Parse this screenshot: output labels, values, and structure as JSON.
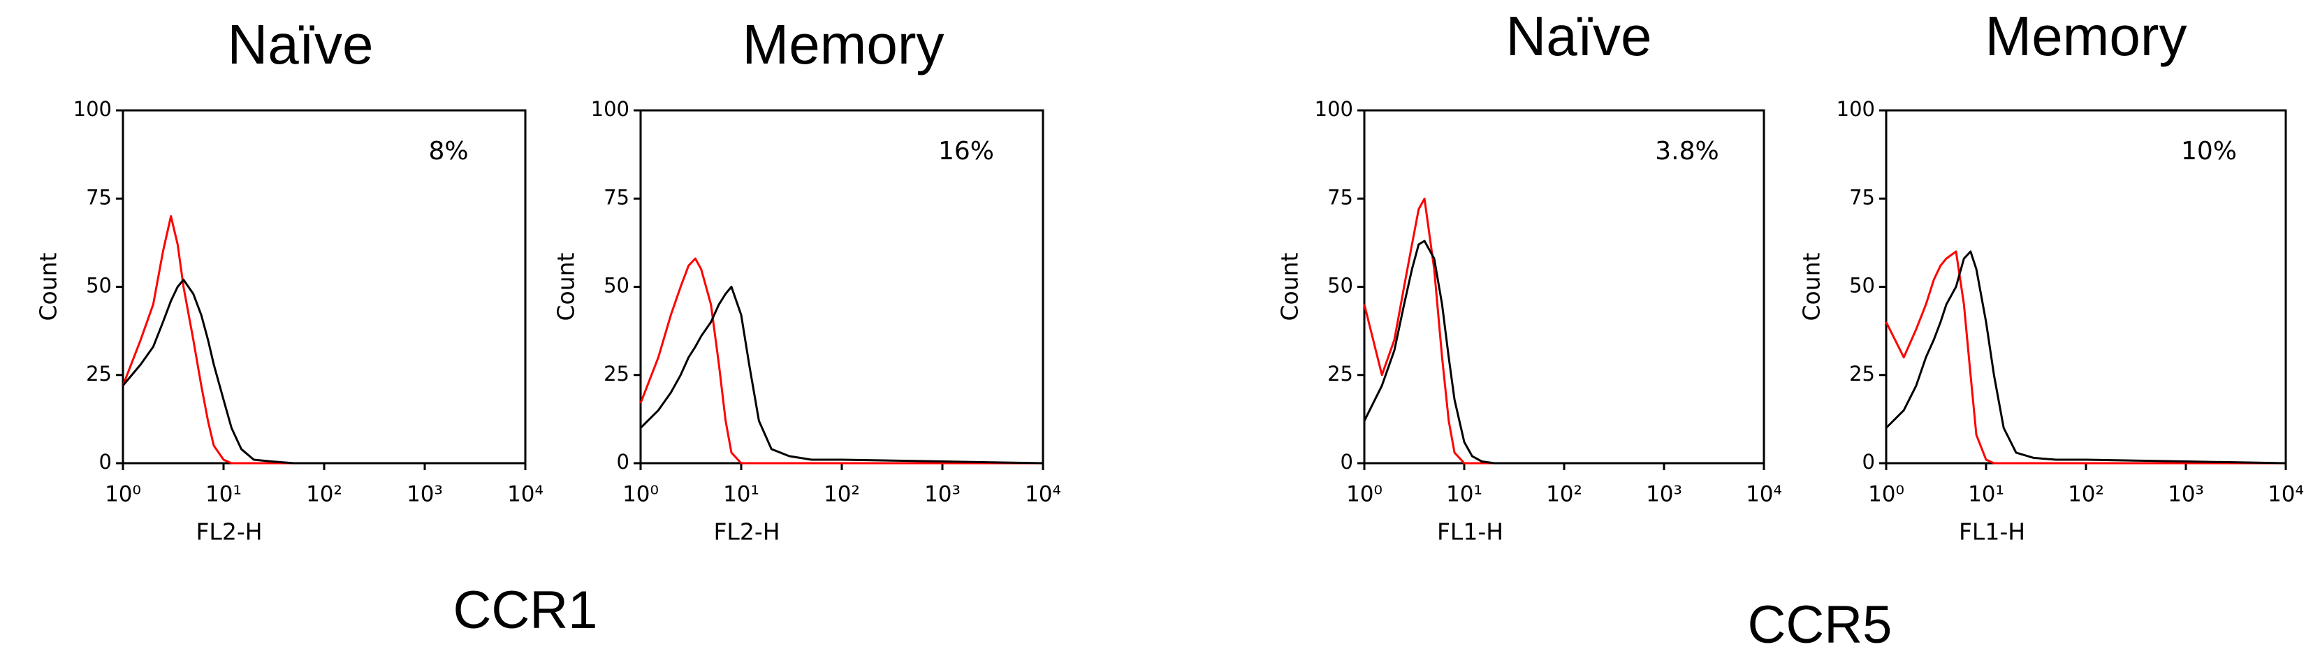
{
  "group_labels": [
    "CCR1",
    "CCR5"
  ],
  "chart_data": [
    {
      "type": "line",
      "title": "Naïve",
      "annotation": "8%",
      "xlabel": "FL2-H",
      "ylabel": "Count",
      "xscale": "log",
      "xlim": [
        1,
        10000
      ],
      "xticks": [
        {
          "value": 1,
          "label": "10⁰"
        },
        {
          "value": 10,
          "label": "10¹"
        },
        {
          "value": 100,
          "label": "10²"
        },
        {
          "value": 1000,
          "label": "10³"
        },
        {
          "value": 10000,
          "label": "10⁴"
        }
      ],
      "ylim": [
        0,
        100
      ],
      "yticks": [
        0,
        25,
        50,
        75,
        100
      ],
      "x": [
        1,
        1.5,
        2,
        2.5,
        3,
        3.5,
        4,
        5,
        6,
        7,
        8,
        10,
        12,
        15,
        20,
        30,
        50,
        100,
        1000,
        10000
      ],
      "series": [
        {
          "color": "#ff0000",
          "values": [
            22,
            35,
            45,
            60,
            70,
            62,
            50,
            35,
            22,
            12,
            5,
            1,
            0,
            0,
            0,
            0,
            0,
            0,
            0,
            0
          ]
        },
        {
          "color": "#000000",
          "values": [
            22,
            28,
            33,
            40,
            46,
            50,
            52,
            48,
            42,
            35,
            28,
            18,
            10,
            4,
            1,
            0.5,
            0,
            0,
            0,
            0
          ]
        }
      ]
    },
    {
      "type": "line",
      "title": "Memory",
      "annotation": "16%",
      "xlabel": "FL2-H",
      "ylabel": "Count",
      "xscale": "log",
      "xlim": [
        1,
        10000
      ],
      "xticks": [
        {
          "value": 1,
          "label": "10⁰"
        },
        {
          "value": 10,
          "label": "10¹"
        },
        {
          "value": 100,
          "label": "10²"
        },
        {
          "value": 1000,
          "label": "10³"
        },
        {
          "value": 10000,
          "label": "10⁴"
        }
      ],
      "ylim": [
        0,
        100
      ],
      "yticks": [
        0,
        25,
        50,
        75,
        100
      ],
      "x": [
        1,
        1.5,
        2,
        2.5,
        3,
        3.5,
        4,
        5,
        6,
        7,
        8,
        10,
        12,
        15,
        20,
        30,
        50,
        100,
        1000,
        10000
      ],
      "series": [
        {
          "color": "#ff0000",
          "values": [
            17,
            30,
            42,
            50,
            56,
            58,
            55,
            45,
            28,
            12,
            3,
            0,
            0,
            0,
            0,
            0,
            0,
            0,
            0,
            0
          ]
        },
        {
          "color": "#000000",
          "values": [
            10,
            15,
            20,
            25,
            30,
            33,
            36,
            40,
            45,
            48,
            50,
            42,
            28,
            12,
            4,
            2,
            1,
            1,
            0.5,
            0
          ]
        }
      ]
    },
    {
      "type": "line",
      "title": "Naïve",
      "annotation": "3.8%",
      "xlabel": "FL1-H",
      "ylabel": "Count",
      "xscale": "log",
      "xlim": [
        1,
        10000
      ],
      "xticks": [
        {
          "value": 1,
          "label": "10⁰"
        },
        {
          "value": 10,
          "label": "10¹"
        },
        {
          "value": 100,
          "label": "10²"
        },
        {
          "value": 1000,
          "label": "10³"
        },
        {
          "value": 10000,
          "label": "10⁴"
        }
      ],
      "ylim": [
        0,
        100
      ],
      "yticks": [
        0,
        25,
        50,
        75,
        100
      ],
      "x": [
        1,
        1.5,
        2,
        2.5,
        3,
        3.5,
        4,
        5,
        6,
        7,
        8,
        10,
        12,
        15,
        20,
        30,
        50,
        100,
        1000,
        10000
      ],
      "series": [
        {
          "color": "#ff0000",
          "values": [
            45,
            25,
            35,
            50,
            62,
            72,
            75,
            55,
            30,
            12,
            3,
            0,
            0,
            0,
            0,
            0,
            0,
            0,
            0,
            0
          ]
        },
        {
          "color": "#000000",
          "values": [
            12,
            22,
            32,
            45,
            55,
            62,
            63,
            58,
            45,
            30,
            18,
            6,
            2,
            0.5,
            0,
            0,
            0,
            0,
            0,
            0
          ]
        }
      ]
    },
    {
      "type": "line",
      "title": "Memory",
      "annotation": "10%",
      "xlabel": "FL1-H",
      "ylabel": "Count",
      "xscale": "log",
      "xlim": [
        1,
        10000
      ],
      "xticks": [
        {
          "value": 1,
          "label": "10⁰"
        },
        {
          "value": 10,
          "label": "10¹"
        },
        {
          "value": 100,
          "label": "10²"
        },
        {
          "value": 1000,
          "label": "10³"
        },
        {
          "value": 10000,
          "label": "10⁴"
        }
      ],
      "ylim": [
        0,
        100
      ],
      "yticks": [
        0,
        25,
        50,
        75,
        100
      ],
      "x": [
        1,
        1.5,
        2,
        2.5,
        3,
        3.5,
        4,
        5,
        6,
        7,
        8,
        10,
        12,
        15,
        20,
        30,
        50,
        100,
        1000,
        10000
      ],
      "series": [
        {
          "color": "#ff0000",
          "values": [
            40,
            30,
            38,
            45,
            52,
            56,
            58,
            60,
            45,
            25,
            8,
            1,
            0,
            0,
            0,
            0,
            0,
            0,
            0,
            0
          ]
        },
        {
          "color": "#000000",
          "values": [
            10,
            15,
            22,
            30,
            35,
            40,
            45,
            50,
            58,
            60,
            55,
            40,
            25,
            10,
            3,
            1.5,
            1,
            1,
            0.5,
            0
          ]
        }
      ]
    }
  ]
}
